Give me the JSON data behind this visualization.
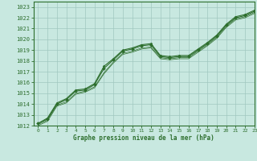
{
  "title": "Graphe pression niveau de la mer (hPa)",
  "bg_color": "#c8e8e0",
  "grid_color": "#a0c8c0",
  "line_color": "#2d6e2d",
  "xlim": [
    -0.5,
    23
  ],
  "ylim": [
    1012,
    1023.5
  ],
  "xticks": [
    0,
    1,
    2,
    3,
    4,
    5,
    6,
    7,
    8,
    9,
    10,
    11,
    12,
    13,
    14,
    15,
    16,
    17,
    18,
    19,
    20,
    21,
    22,
    23
  ],
  "yticks": [
    1012,
    1013,
    1014,
    1015,
    1016,
    1017,
    1018,
    1019,
    1020,
    1021,
    1022,
    1023
  ],
  "series": [
    [
      1012.2,
      1012.6,
      1014.0,
      1014.4,
      1015.2,
      1015.3,
      1015.8,
      1017.3,
      1018.1,
      1018.9,
      1019.1,
      1019.4,
      1019.5,
      1018.4,
      1018.3,
      1018.4,
      1018.4,
      1019.0,
      1019.6,
      1020.3,
      1021.3,
      1022.0,
      1022.2,
      1022.6
    ],
    [
      1012.1,
      1012.5,
      1013.9,
      1014.2,
      1015.0,
      1015.2,
      1015.6,
      1016.9,
      1017.9,
      1018.7,
      1018.9,
      1019.2,
      1019.3,
      1018.3,
      1018.2,
      1018.3,
      1018.3,
      1018.9,
      1019.5,
      1020.2,
      1021.2,
      1021.9,
      1022.1,
      1022.5
    ],
    [
      1012.0,
      1012.4,
      1013.8,
      1014.1,
      1014.9,
      1015.1,
      1015.5,
      1016.8,
      1017.8,
      1018.6,
      1018.8,
      1019.1,
      1019.2,
      1018.2,
      1018.1,
      1018.2,
      1018.2,
      1018.8,
      1019.4,
      1020.1,
      1021.1,
      1021.8,
      1022.0,
      1022.4
    ],
    [
      1012.2,
      1012.7,
      1014.1,
      1014.5,
      1015.3,
      1015.4,
      1015.9,
      1017.5,
      1018.2,
      1019.0,
      1019.2,
      1019.5,
      1019.6,
      1018.5,
      1018.4,
      1018.5,
      1018.5,
      1019.1,
      1019.7,
      1020.4,
      1021.4,
      1022.1,
      1022.3,
      1022.7
    ]
  ]
}
